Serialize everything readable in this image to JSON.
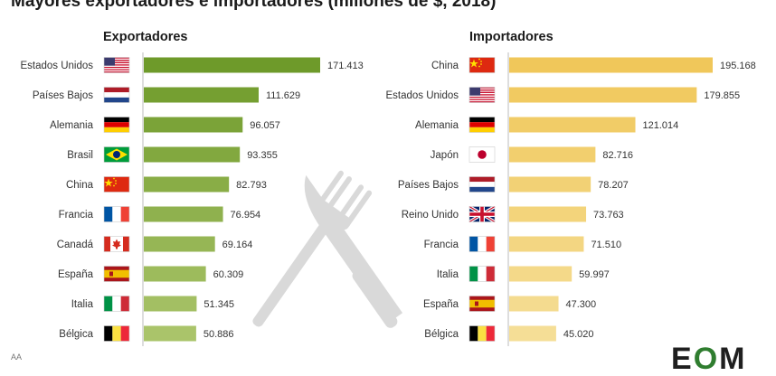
{
  "title": "Mayores exportadores e importadores (millones de $, 2018)",
  "footer_note": "AA",
  "logo_text": {
    "first": "E",
    "middle": "O",
    "last": "M"
  },
  "chart_data": [
    {
      "type": "bar",
      "orientation": "horizontal",
      "title": "Exportadores",
      "categories": [
        "Estados Unidos",
        "Países Bajos",
        "Alemania",
        "Brasil",
        "China",
        "Francia",
        "Canadá",
        "España",
        "Italia",
        "Bélgica"
      ],
      "values": [
        171413,
        111629,
        96057,
        93355,
        82793,
        76954,
        69164,
        60309,
        51345,
        50886
      ],
      "value_labels": [
        "171.413",
        "111.629",
        "96.057",
        "93.355",
        "82.793",
        "76.954",
        "69.164",
        "60.309",
        "51.345",
        "50.886"
      ],
      "flags": [
        "flag-usa-icon",
        "flag-netherlands-icon",
        "flag-germany-icon",
        "flag-brazil-icon",
        "flag-china-icon",
        "flag-france-icon",
        "flag-canada-icon",
        "flag-spain-icon",
        "flag-italy-icon",
        "flag-belgium-icon"
      ],
      "color_start": "#6e9a2a",
      "color_end": "#aac46a",
      "xlim": [
        0,
        171413
      ]
    },
    {
      "type": "bar",
      "orientation": "horizontal",
      "title": "Importadores",
      "categories": [
        "China",
        "Estados Unidos",
        "Alemania",
        "Japón",
        "Países Bajos",
        "Reino Unido",
        "Francia",
        "Italia",
        "España",
        "Bélgica"
      ],
      "values": [
        195168,
        179855,
        121014,
        82716,
        78207,
        73763,
        71510,
        59997,
        47300,
        45020
      ],
      "value_labels": [
        "195.168",
        "179.855",
        "121.014",
        "82.716",
        "78.207",
        "73.763",
        "71.510",
        "59.997",
        "47.300",
        "45.020"
      ],
      "flags": [
        "flag-china-icon",
        "flag-usa-icon",
        "flag-germany-icon",
        "flag-japan-icon",
        "flag-netherlands-icon",
        "flag-uk-icon",
        "flag-france-icon",
        "flag-italy-icon",
        "flag-spain-icon",
        "flag-belgium-icon"
      ],
      "color_start": "#f0c75a",
      "color_end": "#f5de96",
      "xlim": [
        0,
        195168
      ]
    }
  ]
}
